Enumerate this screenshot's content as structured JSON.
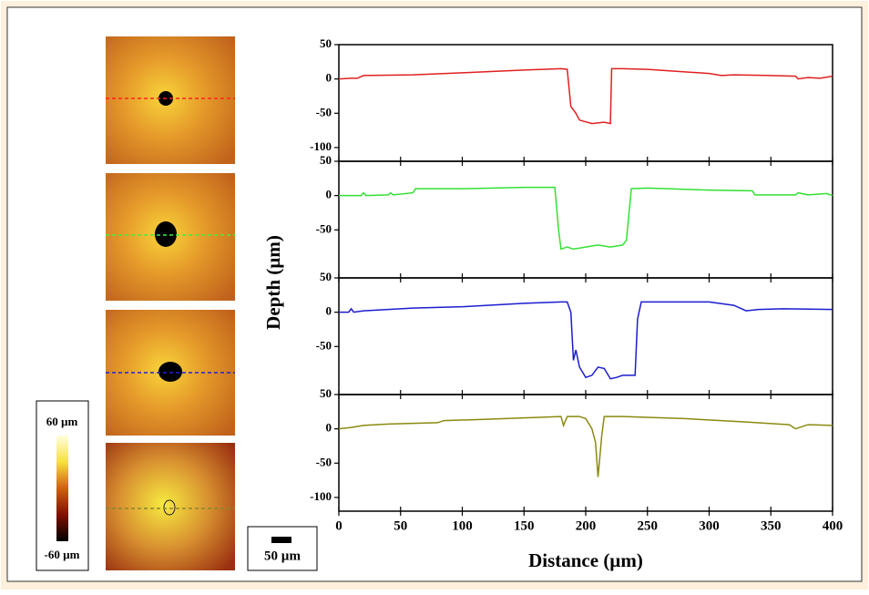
{
  "chart_data": [
    {
      "type": "line",
      "color": "#e02020",
      "xlim": [
        0,
        400
      ],
      "ylim": [
        -120,
        50
      ],
      "yticks": [
        -100,
        -50,
        0,
        50
      ],
      "x": [
        0,
        10,
        15,
        20,
        60,
        100,
        150,
        180,
        185,
        188,
        192,
        195,
        205,
        215,
        220,
        221,
        230,
        250,
        300,
        310,
        320,
        350,
        370,
        372,
        380,
        390,
        400
      ],
      "values": [
        0,
        1,
        1,
        5,
        6,
        9,
        13,
        15,
        14,
        -40,
        -50,
        -60,
        -65,
        -63,
        -65,
        15,
        15,
        14,
        8,
        5,
        6,
        5,
        4,
        0,
        2,
        1,
        4
      ]
    },
    {
      "type": "line",
      "color": "#33e033",
      "xlim": [
        0,
        400
      ],
      "ylim": [
        -120,
        50
      ],
      "yticks": [
        -50,
        0,
        50
      ],
      "x": [
        0,
        18,
        20,
        22,
        40,
        42,
        44,
        60,
        62,
        100,
        150,
        175,
        178,
        180,
        185,
        190,
        200,
        210,
        220,
        230,
        233,
        237,
        250,
        300,
        335,
        337,
        370,
        372,
        380,
        395,
        400
      ],
      "values": [
        0,
        0,
        4,
        0,
        1,
        4,
        1,
        4,
        10,
        10,
        12,
        12,
        -50,
        -78,
        -75,
        -78,
        -75,
        -72,
        -75,
        -72,
        -65,
        10,
        11,
        8,
        7,
        1,
        1,
        4,
        1,
        3,
        0
      ]
    },
    {
      "type": "line",
      "color": "#1c1cd0",
      "xlim": [
        0,
        400
      ],
      "ylim": [
        -120,
        50
      ],
      "yticks": [
        -50,
        0,
        50
      ],
      "x": [
        0,
        8,
        10,
        12,
        20,
        40,
        60,
        100,
        150,
        180,
        185,
        188,
        190,
        192,
        195,
        200,
        205,
        210,
        215,
        220,
        225,
        230,
        240,
        242,
        245,
        250,
        300,
        320,
        330,
        340,
        360,
        400
      ],
      "values": [
        0,
        0,
        5,
        0,
        2,
        4,
        6,
        8,
        13,
        15,
        15,
        0,
        -70,
        -55,
        -80,
        -95,
        -92,
        -80,
        -82,
        -97,
        -95,
        -92,
        -92,
        -10,
        15,
        15,
        15,
        10,
        2,
        4,
        5,
        4
      ]
    },
    {
      "type": "line",
      "color": "#8a8a10",
      "xlim": [
        0,
        400
      ],
      "ylim": [
        -120,
        50
      ],
      "yticks": [
        -100,
        -50,
        0,
        50
      ],
      "xticks": [
        0,
        50,
        100,
        150,
        200,
        250,
        300,
        350,
        400
      ],
      "x": [
        0,
        10,
        20,
        40,
        80,
        85,
        120,
        150,
        180,
        182,
        185,
        195,
        200,
        205,
        208,
        210,
        212,
        213,
        215,
        230,
        280,
        330,
        365,
        370,
        380,
        400
      ],
      "values": [
        0,
        2,
        5,
        7,
        9,
        12,
        14,
        16,
        18,
        5,
        18,
        18,
        15,
        0,
        -20,
        -70,
        -30,
        -10,
        18,
        18,
        15,
        10,
        6,
        0,
        6,
        5
      ]
    }
  ],
  "ylabel": "Depth (µm)",
  "xlabel": "Distance (µm)",
  "colorbar": {
    "max_label": "60 µm",
    "min_label": "-60 µm"
  },
  "scale_bar": "50 µm"
}
